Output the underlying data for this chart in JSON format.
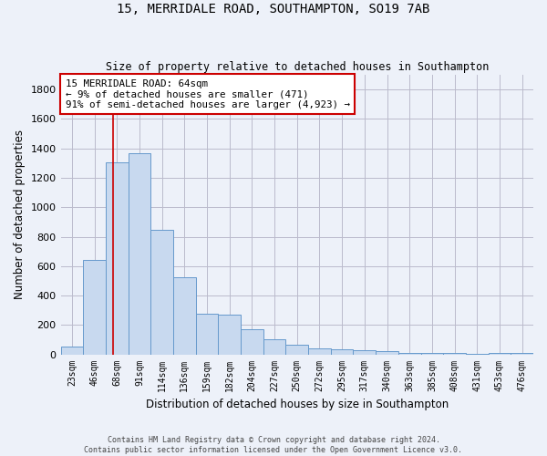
{
  "title1": "15, MERRIDALE ROAD, SOUTHAMPTON, SO19 7AB",
  "title2": "Size of property relative to detached houses in Southampton",
  "xlabel": "Distribution of detached houses by size in Southampton",
  "ylabel": "Number of detached properties",
  "bar_color": "#c8d9ef",
  "bar_edge_color": "#6699cc",
  "vline_color": "#cc0000",
  "categories": [
    "23sqm",
    "46sqm",
    "68sqm",
    "91sqm",
    "114sqm",
    "136sqm",
    "159sqm",
    "182sqm",
    "204sqm",
    "227sqm",
    "250sqm",
    "272sqm",
    "295sqm",
    "317sqm",
    "340sqm",
    "363sqm",
    "385sqm",
    "408sqm",
    "431sqm",
    "453sqm",
    "476sqm"
  ],
  "values": [
    50,
    640,
    1305,
    1370,
    845,
    525,
    275,
    270,
    170,
    105,
    65,
    40,
    35,
    28,
    20,
    12,
    10,
    10,
    5,
    10,
    10
  ],
  "vline_pos": 1.82,
  "ylim": [
    0,
    1900
  ],
  "yticks": [
    0,
    200,
    400,
    600,
    800,
    1000,
    1200,
    1400,
    1600,
    1800
  ],
  "annotation_box_text": "15 MERRIDALE ROAD: 64sqm\n← 9% of detached houses are smaller (471)\n91% of semi-detached houses are larger (4,923) →",
  "annotation_box_color": "#cc0000",
  "annotation_box_facecolor": "#ffffff",
  "footer1": "Contains HM Land Registry data © Crown copyright and database right 2024.",
  "footer2": "Contains public sector information licensed under the Open Government Licence v3.0.",
  "bg_color": "#edf1f9",
  "grid_color": "#bbbbcc"
}
